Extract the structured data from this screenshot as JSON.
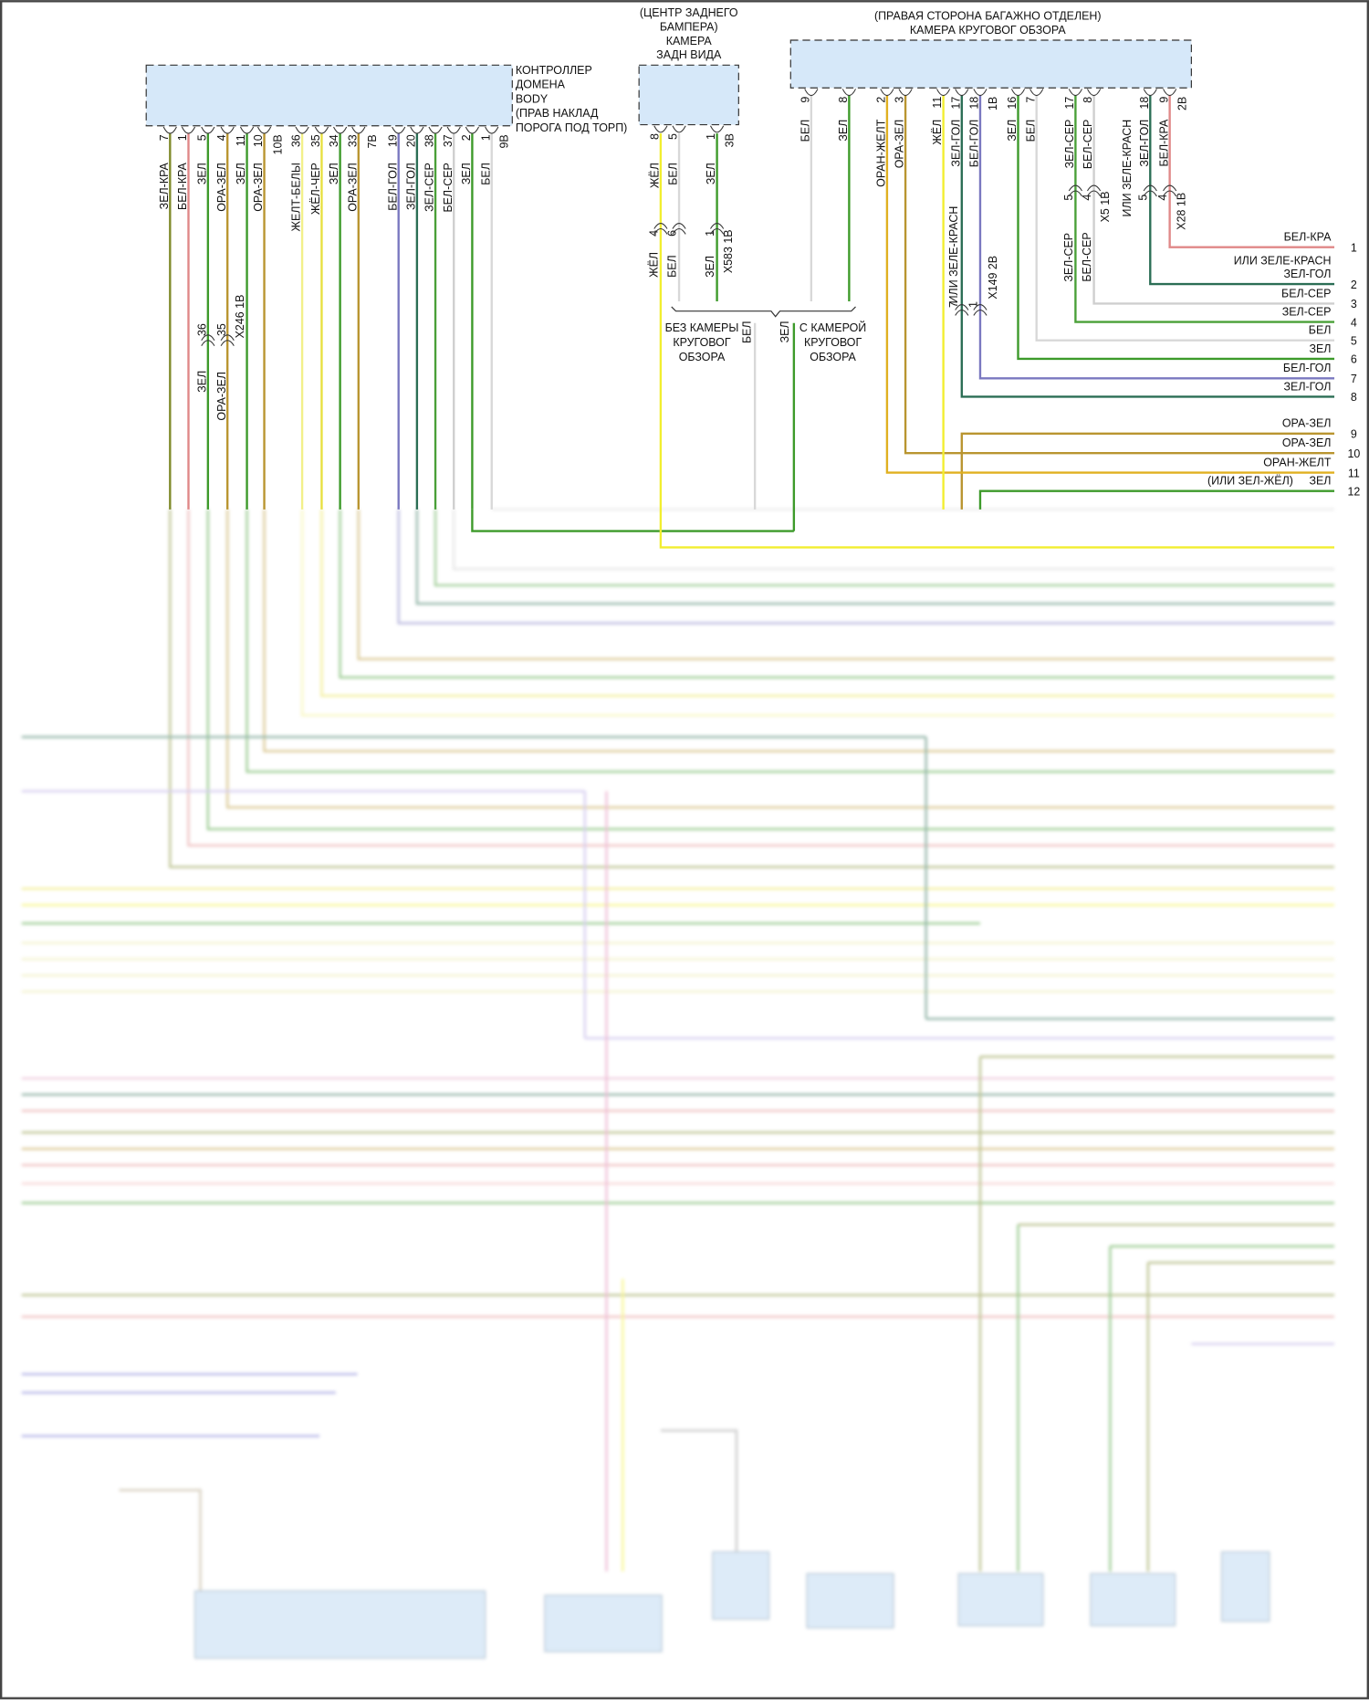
{
  "colors": {
    "module_fill": "#d6e8f9",
    "ЗЕЛ": "#3d9a2a",
    "ЗЕЛ-КРА": "#7f8a2a",
    "БЕЛ-КРА": "#e08888",
    "ОРА-ЗЕЛ": "#b99530",
    "ОРАН-ЖЕЛТ": "#e0b020",
    "ЖЕЛТ-БЕЛЫ": "#f2f08a",
    "ЖЁЛ-ЧЕР": "#e8e040",
    "ЖЁЛ": "#f2ee30",
    "БЕЛ-ГОЛ": "#7a78c0",
    "ЗЕЛ-ГОЛ": "#2b6e55",
    "ЗЕЛ-СЕР": "#4aa038",
    "БЕЛ-СЕР": "#cfcfcf",
    "БЕЛ": "#d8d8d8"
  },
  "controller": {
    "name_lines": [
      "КОНТРОЛЛЕР",
      "ДОМЕНА",
      "BODY",
      "(ПРАВ НАКЛАД",
      "ПОРОГА ПОД ТОРП)"
    ],
    "pins": [
      {
        "pin": "7",
        "wire": "ЗЕЛ-КРА"
      },
      {
        "pin": "1",
        "wire": "БЕЛ-КРА"
      },
      {
        "pin": "5",
        "wire": "ЗЕЛ"
      },
      {
        "pin": "4",
        "wire": "ОРА-ЗЕЛ"
      },
      {
        "pin": "11",
        "wire": "ЗЕЛ"
      },
      {
        "pin": "10",
        "wire": "ОРА-ЗЕЛ"
      },
      {
        "pin": "10В"
      },
      {
        "pin": "36",
        "wire": "ЖЕЛТ-БЕЛЫ"
      },
      {
        "pin": "35",
        "wire": "ЖЁЛ-ЧЕР"
      },
      {
        "pin": "34",
        "wire": "ЗЕЛ"
      },
      {
        "pin": "33",
        "wire": "ОРА-ЗЕЛ"
      },
      {
        "pin": "7В"
      },
      {
        "pin": "19",
        "wire": "БЕЛ-ГОЛ"
      },
      {
        "pin": "20",
        "wire": "ЗЕЛ-ГОЛ"
      },
      {
        "pin": "38",
        "wire": "ЗЕЛ-СЕР"
      },
      {
        "pin": "37",
        "wire": "БЕЛ-СЕР"
      },
      {
        "pin": "2",
        "wire": "ЗЕЛ"
      },
      {
        "pin": "1",
        "wire": "БЕЛ"
      },
      {
        "pin": "9В"
      }
    ],
    "splice": {
      "label": "X246 1В",
      "pins": [
        {
          "pin": "36",
          "wire": "ЗЕЛ"
        },
        {
          "pin": "35",
          "wire": "ОРА-ЗЕЛ"
        }
      ]
    }
  },
  "rear_camera": {
    "location_lines": [
      "(ЦЕНТР ЗАДНЕГО",
      "БАМПЕРА)"
    ],
    "name_lines": [
      "КАМЕРА",
      "ЗАДН ВИДА"
    ],
    "pins": [
      {
        "pin": "8",
        "wire": "ЖЁЛ"
      },
      {
        "pin": "5",
        "wire": "БЕЛ"
      },
      {
        "pin": "1",
        "wire": "ЗЕЛ"
      },
      {
        "pin": "3В"
      }
    ],
    "connector": {
      "label": "X583 1В",
      "pins": [
        {
          "pin": "4",
          "wire": "ЖЁЛ"
        },
        {
          "pin": "6",
          "wire": "БЕЛ"
        },
        {
          "pin": "1",
          "wire": "ЗЕЛ"
        }
      ]
    },
    "variants": [
      {
        "label_lines": [
          "БЕЗ КАМЕРЫ",
          "КРУГОВОГ",
          "ОБЗОРА"
        ],
        "wire": "БЕЛ"
      },
      {
        "label_lines": [
          "С КАМЕРОЙ",
          "КРУГОВОГ",
          "ОБЗОРА"
        ],
        "wire": "ЗЕЛ"
      }
    ]
  },
  "surround_camera": {
    "location": "(ПРАВАЯ СТОРОНА БАГАЖНО ОТДЕЛЕН)",
    "name": "КАМЕРА КРУГОВОГ ОБЗОРА",
    "pins": [
      {
        "pin": "9",
        "wire": "БЕЛ"
      },
      {
        "pin": "8",
        "wire": "ЗЕЛ"
      },
      {
        "pin": "2",
        "wire": "ОРАН-ЖЕЛТ"
      },
      {
        "pin": "3",
        "wire": "ОРА-ЗЕЛ"
      },
      {
        "pin": "11",
        "wire": "ЖЁЛ"
      },
      {
        "pin": "17",
        "wire": "ЗЕЛ-ГОЛ"
      },
      {
        "pin": "18",
        "wire": "БЕЛ-ГОЛ"
      },
      {
        "pin": "1В"
      },
      {
        "pin": "16",
        "wire": "ЗЕЛ"
      },
      {
        "pin": "7",
        "wire": "БЕЛ"
      },
      {
        "pin": "17",
        "wire": "ЗЕЛ-СЕР"
      },
      {
        "pin": "8",
        "wire": "БЕЛ-СЕР"
      },
      {
        "pin": "18",
        "wire": "ЗЕЛ-ГОЛ"
      },
      {
        "pin": "9",
        "wire": "БЕЛ-КРА"
      },
      {
        "pin": "2В"
      }
    ],
    "alt_wire_note": "ИЛИ ЗЕЛЕ-КРАСН",
    "x149": {
      "label": "X149 2В",
      "pins": [
        "7",
        "1"
      ],
      "note": "ИЛИ ЗЕЛЕ-КРАСН"
    },
    "x5": {
      "label": "X5 1В",
      "pins": [
        {
          "pin": "5",
          "wire": "ЗЕЛ-СЕР"
        },
        {
          "pin": "4",
          "wire": "БЕЛ-СЕР"
        }
      ]
    },
    "x28": {
      "label": "X28 1В",
      "pins": [
        "5",
        "4"
      ],
      "note": "ИЛИ ЗЕЛЕ-КРАСН"
    }
  },
  "outputs": [
    {
      "num": "1",
      "wire": "БЕЛ-КРА"
    },
    {
      "num": "2",
      "wire": "ЗЕЛ-ГОЛ",
      "note": "ИЛИ ЗЕЛЕ-КРАСН"
    },
    {
      "num": "3",
      "wire": "БЕЛ-СЕР"
    },
    {
      "num": "4",
      "wire": "ЗЕЛ-СЕР"
    },
    {
      "num": "5",
      "wire": "БЕЛ"
    },
    {
      "num": "6",
      "wire": "ЗЕЛ"
    },
    {
      "num": "7",
      "wire": "БЕЛ-ГОЛ"
    },
    {
      "num": "8",
      "wire": "ЗЕЛ-ГОЛ"
    },
    {
      "num": "9",
      "wire": "ОРА-ЗЕЛ"
    },
    {
      "num": "10",
      "wire": "ОРА-ЗЕЛ"
    },
    {
      "num": "11",
      "wire": "ОРАН-ЖЕЛТ"
    },
    {
      "num": "12",
      "wire": "ЗЕЛ",
      "note": "(ИЛИ ЗЕЛ-ЖЁЛ)"
    }
  ]
}
